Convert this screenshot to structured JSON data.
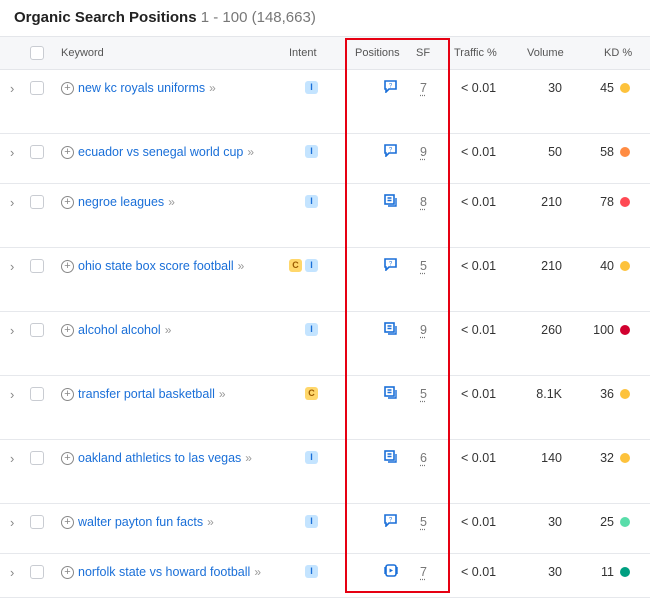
{
  "title": "Organic Search Positions",
  "range": "1 - 100 (148,663)",
  "columns": {
    "keyword": "Keyword",
    "intent": "Intent",
    "positions": "Positions",
    "sf": "SF",
    "traffic": "Traffic %",
    "volume": "Volume",
    "kd": "KD %"
  },
  "colors": {
    "yellow": "#fdc23c",
    "orange": "#ff8c43",
    "red": "#ff4953",
    "darkred": "#d1002f",
    "lightgreen": "#59ddaa",
    "green": "#009f81",
    "link": "#1a6fd8",
    "highlight": "#e60012"
  },
  "rows": [
    {
      "keyword": "new kc royals uniforms",
      "intent": [
        "I"
      ],
      "serp_icon": "question-icon",
      "sf": "7",
      "traffic": "< 0.01",
      "volume": "30",
      "kd": "45",
      "kd_color": "#fdc23c"
    },
    {
      "keyword": "ecuador vs senegal world cup",
      "intent": [
        "I"
      ],
      "serp_icon": "question-icon",
      "sf": "9",
      "traffic": "< 0.01",
      "volume": "50",
      "kd": "58",
      "kd_color": "#ff8c43"
    },
    {
      "keyword": "negroe leagues",
      "intent": [
        "I"
      ],
      "serp_icon": "article-icon",
      "sf": "8",
      "traffic": "< 0.01",
      "volume": "210",
      "kd": "78",
      "kd_color": "#ff4953"
    },
    {
      "keyword": "ohio state box score football",
      "intent": [
        "C",
        "I"
      ],
      "serp_icon": "question-icon",
      "sf": "5",
      "traffic": "< 0.01",
      "volume": "210",
      "kd": "40",
      "kd_color": "#fdc23c"
    },
    {
      "keyword": "alcohol alcohol",
      "intent": [
        "I"
      ],
      "serp_icon": "article-icon",
      "sf": "9",
      "traffic": "< 0.01",
      "volume": "260",
      "kd": "100",
      "kd_color": "#d1002f"
    },
    {
      "keyword": "transfer portal basketball",
      "intent": [
        "C"
      ],
      "serp_icon": "article-icon",
      "sf": "5",
      "traffic": "< 0.01",
      "volume": "8.1K",
      "kd": "36",
      "kd_color": "#fdc23c"
    },
    {
      "keyword": "oakland athletics to las vegas",
      "intent": [
        "I"
      ],
      "serp_icon": "article-icon",
      "sf": "6",
      "traffic": "< 0.01",
      "volume": "140",
      "kd": "32",
      "kd_color": "#fdc23c"
    },
    {
      "keyword": "walter payton fun facts",
      "intent": [
        "I"
      ],
      "serp_icon": "question-icon",
      "sf": "5",
      "traffic": "< 0.01",
      "volume": "30",
      "kd": "25",
      "kd_color": "#59ddaa"
    },
    {
      "keyword": "norfolk state vs howard football",
      "intent": [
        "I"
      ],
      "serp_icon": "video-icon",
      "sf": "7",
      "traffic": "< 0.01",
      "volume": "30",
      "kd": "11",
      "kd_color": "#009f81"
    }
  ]
}
